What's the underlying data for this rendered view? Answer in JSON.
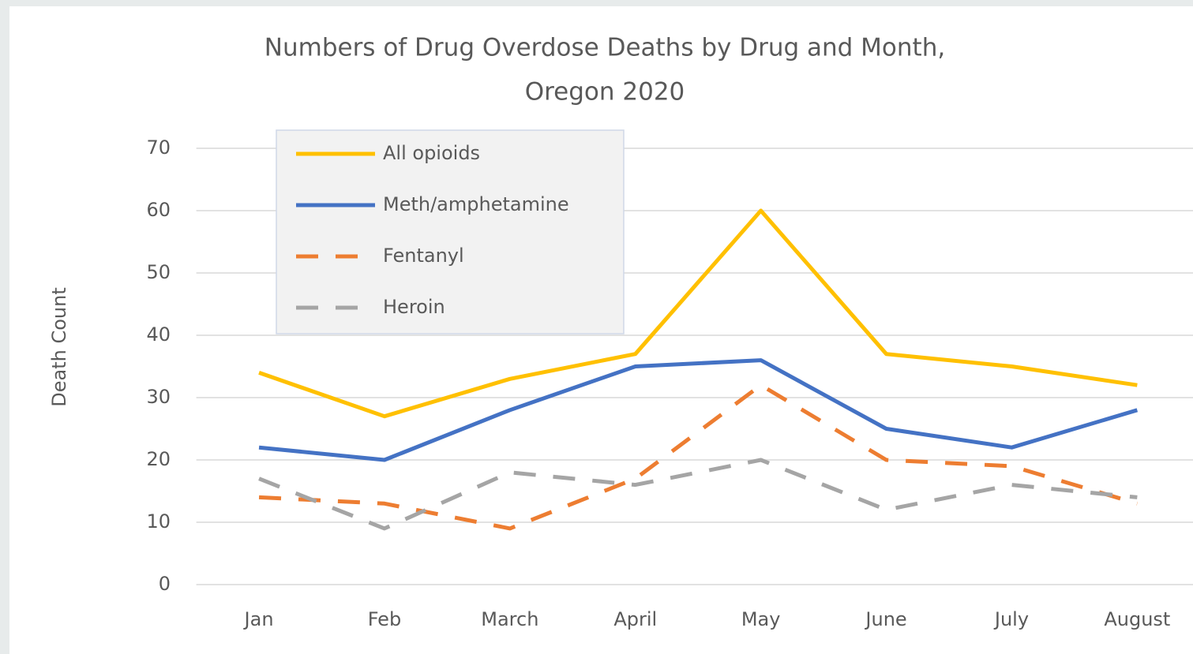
{
  "chart_data": {
    "type": "line",
    "title": [
      "Numbers of Drug Overdose Deaths by Drug and Month,",
      "Oregon 2020"
    ],
    "y_label": "Death Count",
    "categories": [
      "Jan",
      "Feb",
      "March",
      "April",
      "May",
      "June",
      "July",
      "August"
    ],
    "series": [
      {
        "name": "All opioids",
        "color": "#ffc000",
        "style": "solid",
        "values": [
          34,
          27,
          33,
          37,
          60,
          37,
          35,
          32
        ]
      },
      {
        "name": "Meth/amphetamine",
        "color": "#4472c4",
        "style": "solid",
        "values": [
          22,
          20,
          28,
          35,
          36,
          25,
          22,
          28
        ]
      },
      {
        "name": "Fentanyl",
        "color": "#ed7d31",
        "style": "dashed",
        "values": [
          14,
          13,
          9,
          17,
          32,
          20,
          19,
          13
        ]
      },
      {
        "name": "Heroin",
        "color": "#a5a5a5",
        "style": "dashed",
        "values": [
          17,
          9,
          18,
          16,
          20,
          12,
          16,
          14
        ]
      }
    ],
    "ylim": [
      0,
      70
    ],
    "yticks": [
      0,
      10,
      20,
      30,
      40,
      50,
      60,
      70
    ],
    "grid": true,
    "legend": "top-left"
  }
}
